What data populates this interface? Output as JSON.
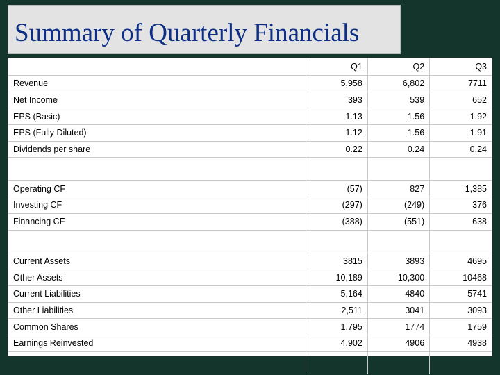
{
  "title": "Summary of Quarterly Financials",
  "table": {
    "columns": [
      "Q1",
      "Q2",
      "Q3"
    ],
    "rows": [
      {
        "type": "data",
        "label": "Revenue",
        "values": [
          "5,958",
          "6,802",
          "7711"
        ]
      },
      {
        "type": "data",
        "label": "Net Income",
        "values": [
          "393",
          "539",
          "652"
        ]
      },
      {
        "type": "data",
        "label": "EPS (Basic)",
        "values": [
          "1.13",
          "1.56",
          "1.92"
        ]
      },
      {
        "type": "data",
        "label": "EPS (Fully Diluted)",
        "values": [
          "1.12",
          "1.56",
          "1.91"
        ]
      },
      {
        "type": "data",
        "label": "Dividends per share",
        "values": [
          "0.22",
          "0.24",
          "0.24"
        ]
      },
      {
        "type": "spacer"
      },
      {
        "type": "data",
        "label": "Operating CF",
        "values": [
          "(57)",
          "827",
          "1,385"
        ]
      },
      {
        "type": "data",
        "label": "Investing CF",
        "values": [
          "(297)",
          "(249)",
          "376"
        ]
      },
      {
        "type": "data",
        "label": "Financing CF",
        "values": [
          "(388)",
          "(551)",
          "638"
        ]
      },
      {
        "type": "spacer"
      },
      {
        "type": "data",
        "label": "Current Assets",
        "values": [
          "3815",
          "3893",
          "4695"
        ]
      },
      {
        "type": "data",
        "label": "Other Assets",
        "values": [
          "10,189",
          "10,300",
          "10468"
        ]
      },
      {
        "type": "data",
        "label": "Current Liabilities",
        "values": [
          "5,164",
          "4840",
          "5741"
        ]
      },
      {
        "type": "data",
        "label": "Other Liabilities",
        "values": [
          "2,511",
          "3041",
          "3093"
        ]
      },
      {
        "type": "data",
        "label": "Common Shares",
        "values": [
          "1,795",
          "1774",
          "1759"
        ]
      },
      {
        "type": "data",
        "label": "Earnings Reinvested",
        "values": [
          "4,902",
          "4906",
          "4938"
        ]
      },
      {
        "type": "spacer"
      }
    ]
  }
}
